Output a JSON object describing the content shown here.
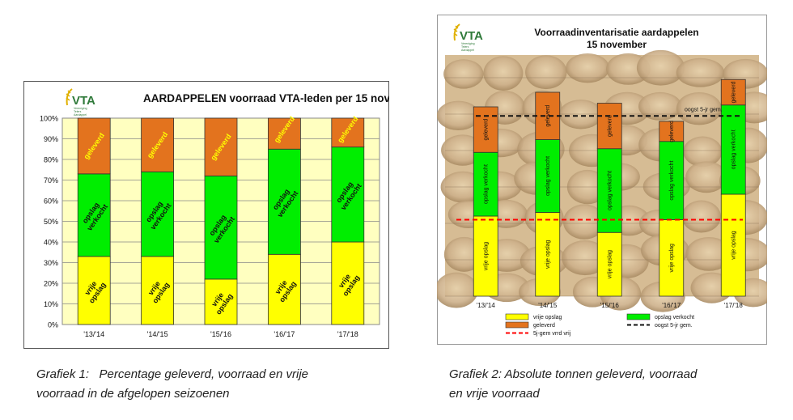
{
  "logo": {
    "text": "VTA",
    "sub": [
      "Vereniging",
      "Telers",
      "Aardappel"
    ]
  },
  "chart_data": [
    {
      "type": "bar",
      "stacked": true,
      "title": "AARDAPPELEN voorraad VTA-leden per 15 nov",
      "categories": [
        "'13/'14",
        "'14/'15",
        "'15/'16",
        "'16/'17",
        "'17/'18"
      ],
      "series": [
        {
          "name": "vrije opslag",
          "label": "vrije\nopslag",
          "color": "#ffff00",
          "values": [
            33,
            33,
            22,
            34,
            40
          ]
        },
        {
          "name": "opslag verkocht",
          "label": "opslag\nverkocht",
          "color": "#00ee00",
          "values": [
            40,
            41,
            50,
            51,
            46
          ]
        },
        {
          "name": "geleverd",
          "label": "geleverd",
          "color": "#e3731e",
          "values": [
            27,
            26,
            28,
            15,
            14
          ]
        }
      ],
      "ylim": [
        0,
        100
      ],
      "yticks": [
        "0%",
        "10%",
        "20%",
        "30%",
        "40%",
        "50%",
        "60%",
        "70%",
        "80%",
        "90%",
        "100%"
      ],
      "grid": true,
      "background": "#ffffc0"
    },
    {
      "type": "bar",
      "stacked": true,
      "title": [
        "Voorraadinventarisatie aardappelen",
        "15 november"
      ],
      "categories": [
        "'13/'14",
        "'14/'15",
        "'15/'16",
        "'16/'17",
        "'17/'18"
      ],
      "series": [
        {
          "name": "vrije opslag",
          "color": "#ffff00",
          "values": [
            44,
            46,
            35,
            42,
            56
          ]
        },
        {
          "name": "opslag verkocht",
          "color": "#00ee00",
          "values": [
            35,
            40,
            46,
            43,
            49
          ]
        },
        {
          "name": "geleverd",
          "color": "#e3731e",
          "values": [
            25,
            26,
            25,
            11,
            14
          ]
        }
      ],
      "reference_lines": [
        {
          "name": "oogst 5-jr gem.",
          "value": 99,
          "color": "#111111",
          "style": "dashed",
          "label": "oogst 5-jr gem."
        },
        {
          "name": "5j-gem vrrd vrij",
          "value": 42,
          "color": "#ff0000",
          "style": "dashed"
        }
      ],
      "ylim": [
        0,
        120
      ],
      "grid": true,
      "legend_position": "bottom",
      "legend": [
        "vrije opslag",
        "opslag verkocht",
        "geleverd",
        "oogst 5-jr gem.",
        "5j-gem vrrd vrij"
      ]
    }
  ],
  "captions": {
    "left": [
      "Grafiek 1:   Percentage geleverd, voorraad en vrije",
      "voorraad in de afgelopen seizoenen"
    ],
    "right": [
      "Grafiek 2: Absolute tonnen geleverd, voorraad",
      "en vrije voorraad"
    ]
  }
}
